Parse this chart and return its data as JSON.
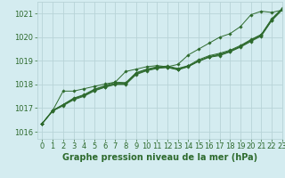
{
  "title": "Graphe pression niveau de la mer (hPa)",
  "background_color": "#d4ecf0",
  "grid_color": "#b8d4d8",
  "line_color": "#2d6a2d",
  "marker_color": "#2d6a2d",
  "xlim": [
    -0.5,
    23
  ],
  "ylim": [
    1015.7,
    1021.5
  ],
  "yticks": [
    1016,
    1017,
    1018,
    1019,
    1020,
    1021
  ],
  "xticks": [
    0,
    1,
    2,
    3,
    4,
    5,
    6,
    7,
    8,
    9,
    10,
    11,
    12,
    13,
    14,
    15,
    16,
    17,
    18,
    19,
    20,
    21,
    22,
    23
  ],
  "series": [
    [
      1016.35,
      1016.9,
      1017.15,
      1017.4,
      1017.55,
      1017.78,
      1017.93,
      1018.05,
      1018.05,
      1018.48,
      1018.62,
      1018.72,
      1018.75,
      1018.65,
      1018.78,
      1019.0,
      1019.18,
      1019.28,
      1019.42,
      1019.62,
      1019.88,
      1020.1,
      1020.75,
      1021.2
    ],
    [
      1016.35,
      1016.9,
      1017.15,
      1017.42,
      1017.57,
      1017.8,
      1017.95,
      1018.1,
      1018.08,
      1018.5,
      1018.65,
      1018.75,
      1018.78,
      1018.68,
      1018.8,
      1019.05,
      1019.22,
      1019.32,
      1019.45,
      1019.65,
      1019.9,
      1020.12,
      1020.78,
      1021.22
    ],
    [
      1016.35,
      1016.88,
      1017.1,
      1017.35,
      1017.5,
      1017.73,
      1017.88,
      1018.0,
      1018.0,
      1018.42,
      1018.58,
      1018.68,
      1018.72,
      1018.62,
      1018.75,
      1018.98,
      1019.15,
      1019.22,
      1019.38,
      1019.58,
      1019.82,
      1020.05,
      1020.7,
      1021.15
    ],
    [
      1016.35,
      1016.88,
      1017.12,
      1017.38,
      1017.53,
      1017.75,
      1017.9,
      1018.02,
      1018.02,
      1018.45,
      1018.6,
      1018.7,
      1018.73,
      1018.63,
      1018.77,
      1019.0,
      1019.17,
      1019.25,
      1019.4,
      1019.6,
      1019.85,
      1020.08,
      1020.72,
      1021.18
    ],
    [
      1016.35,
      1016.9,
      1017.72,
      1017.72,
      1017.82,
      1017.92,
      1018.02,
      1018.1,
      1018.55,
      1018.65,
      1018.75,
      1018.8,
      1018.75,
      1018.85,
      1019.25,
      1019.5,
      1019.75,
      1020.0,
      1020.15,
      1020.45,
      1020.95,
      1021.1,
      1021.05,
      1021.15
    ]
  ],
  "xlabel_fontsize": 7,
  "tick_fontsize": 6
}
